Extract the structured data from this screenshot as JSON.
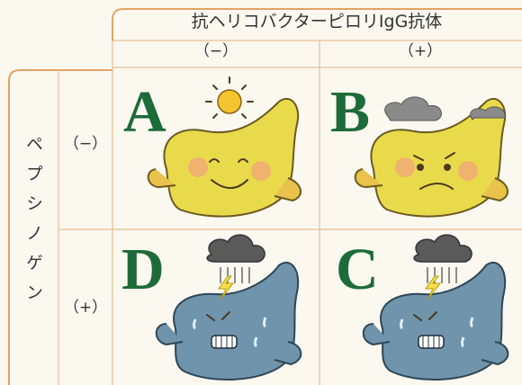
{
  "header": {
    "title": "抗ヘリコバクターピロリIgG抗体",
    "columns": [
      "（−）",
      "（+）"
    ]
  },
  "rows": {
    "title": "ペプシノゲン",
    "labels": [
      "（−）",
      "（+）"
    ]
  },
  "cells": [
    [
      "A",
      "B"
    ],
    [
      "D",
      "C"
    ]
  ]
}
